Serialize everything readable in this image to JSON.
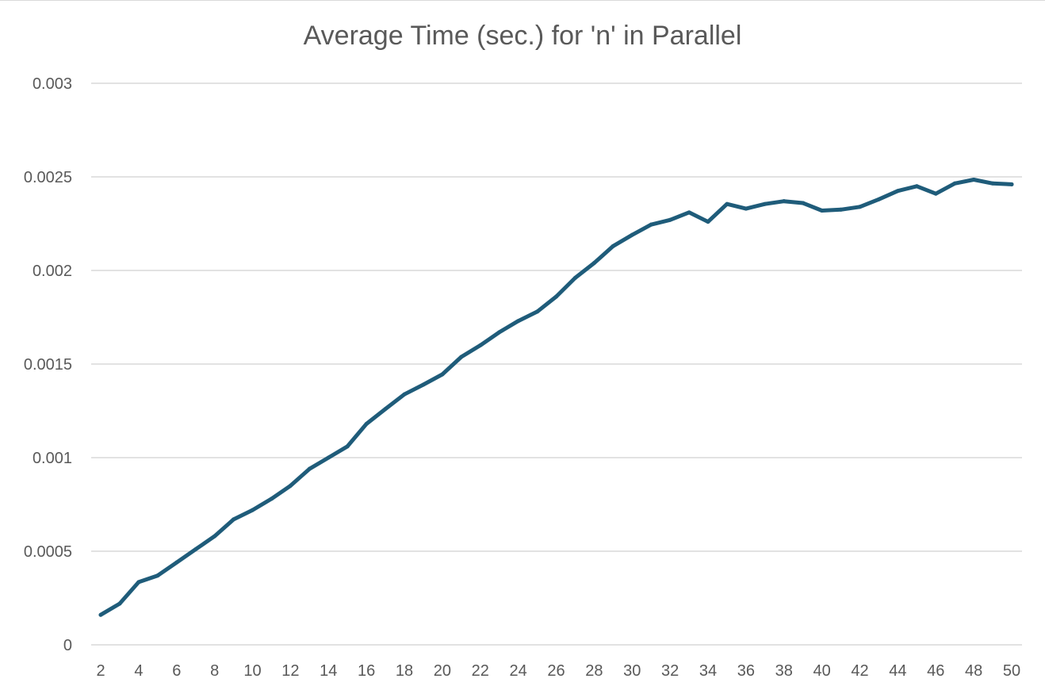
{
  "chart_data": {
    "type": "line",
    "title": "Average Time (sec.) for 'n' in Parallel",
    "xlabel": "",
    "ylabel": "",
    "x": [
      2,
      3,
      4,
      5,
      6,
      7,
      8,
      9,
      10,
      11,
      12,
      13,
      14,
      15,
      16,
      17,
      18,
      19,
      20,
      21,
      22,
      23,
      24,
      25,
      26,
      27,
      28,
      29,
      30,
      31,
      32,
      33,
      34,
      35,
      36,
      37,
      38,
      39,
      40,
      41,
      42,
      43,
      44,
      45,
      46,
      47,
      48,
      49,
      50
    ],
    "x_tick_labels": [
      "2",
      "4",
      "6",
      "8",
      "10",
      "12",
      "14",
      "16",
      "18",
      "20",
      "22",
      "24",
      "26",
      "28",
      "30",
      "32",
      "34",
      "36",
      "38",
      "40",
      "42",
      "44",
      "46",
      "48",
      "50"
    ],
    "y_tick_labels": [
      "0",
      "0.0005",
      "0.001",
      "0.0015",
      "0.002",
      "0.0025",
      "0.003"
    ],
    "ylim": [
      0,
      0.003
    ],
    "grid": true,
    "legend": "none",
    "series": [
      {
        "color": "#1f5c7a",
        "values": [
          0.00016,
          0.00022,
          0.000335,
          0.00037,
          0.00044,
          0.00051,
          0.00058,
          0.00067,
          0.00072,
          0.00078,
          0.00085,
          0.00094,
          0.001,
          0.00106,
          0.00118,
          0.00126,
          0.001338,
          0.00139,
          0.001445,
          0.001538,
          0.0016,
          0.00167,
          0.00173,
          0.00178,
          0.00186,
          0.00196,
          0.00204,
          0.00213,
          0.00219,
          0.002245,
          0.00227,
          0.00231,
          0.00226,
          0.002355,
          0.00233,
          0.002355,
          0.00237,
          0.00236,
          0.00232,
          0.002325,
          0.00234,
          0.00238,
          0.002425,
          0.00245,
          0.00241,
          0.002465,
          0.002485,
          0.002465,
          0.00246
        ]
      }
    ]
  }
}
